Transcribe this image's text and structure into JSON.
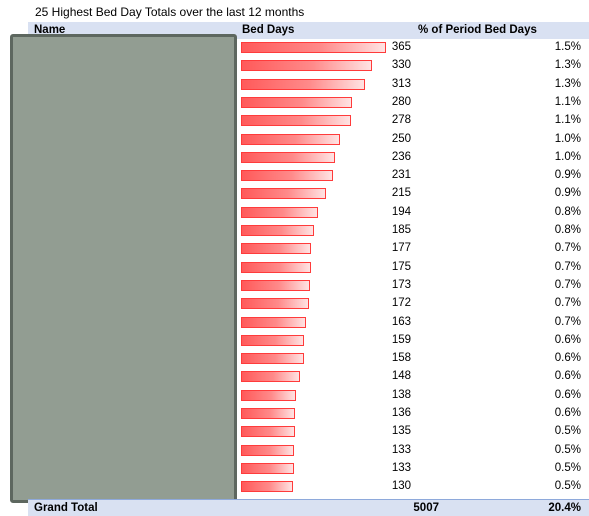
{
  "title": "25 Highest Bed Day Totals over the last 12 months",
  "headers": {
    "name": "Name",
    "bed_days": "Bed Days",
    "pct": "% of Period Bed Days"
  },
  "rows": [
    {
      "bed_days": 365,
      "pct": "1.5%"
    },
    {
      "bed_days": 330,
      "pct": "1.3%"
    },
    {
      "bed_days": 313,
      "pct": "1.3%"
    },
    {
      "bed_days": 280,
      "pct": "1.1%"
    },
    {
      "bed_days": 278,
      "pct": "1.1%"
    },
    {
      "bed_days": 250,
      "pct": "1.0%"
    },
    {
      "bed_days": 236,
      "pct": "1.0%"
    },
    {
      "bed_days": 231,
      "pct": "0.9%"
    },
    {
      "bed_days": 215,
      "pct": "0.9%"
    },
    {
      "bed_days": 194,
      "pct": "0.8%"
    },
    {
      "bed_days": 185,
      "pct": "0.8%"
    },
    {
      "bed_days": 177,
      "pct": "0.7%"
    },
    {
      "bed_days": 175,
      "pct": "0.7%"
    },
    {
      "bed_days": 173,
      "pct": "0.7%"
    },
    {
      "bed_days": 172,
      "pct": "0.7%"
    },
    {
      "bed_days": 163,
      "pct": "0.7%"
    },
    {
      "bed_days": 159,
      "pct": "0.6%"
    },
    {
      "bed_days": 158,
      "pct": "0.6%"
    },
    {
      "bed_days": 148,
      "pct": "0.6%"
    },
    {
      "bed_days": 138,
      "pct": "0.6%"
    },
    {
      "bed_days": 136,
      "pct": "0.6%"
    },
    {
      "bed_days": 135,
      "pct": "0.5%"
    },
    {
      "bed_days": 133,
      "pct": "0.5%"
    },
    {
      "bed_days": 133,
      "pct": "0.5%"
    },
    {
      "bed_days": 130,
      "pct": "0.5%"
    }
  ],
  "total": {
    "label": "Grand Total",
    "bed_days": "5007",
    "pct": "20.4%"
  },
  "colors": {
    "bar_fill": "#ff5a5a",
    "bar_border": "#ff3b3b",
    "header_bg": "#d9e1f2",
    "name_mask": "#929d92"
  }
}
